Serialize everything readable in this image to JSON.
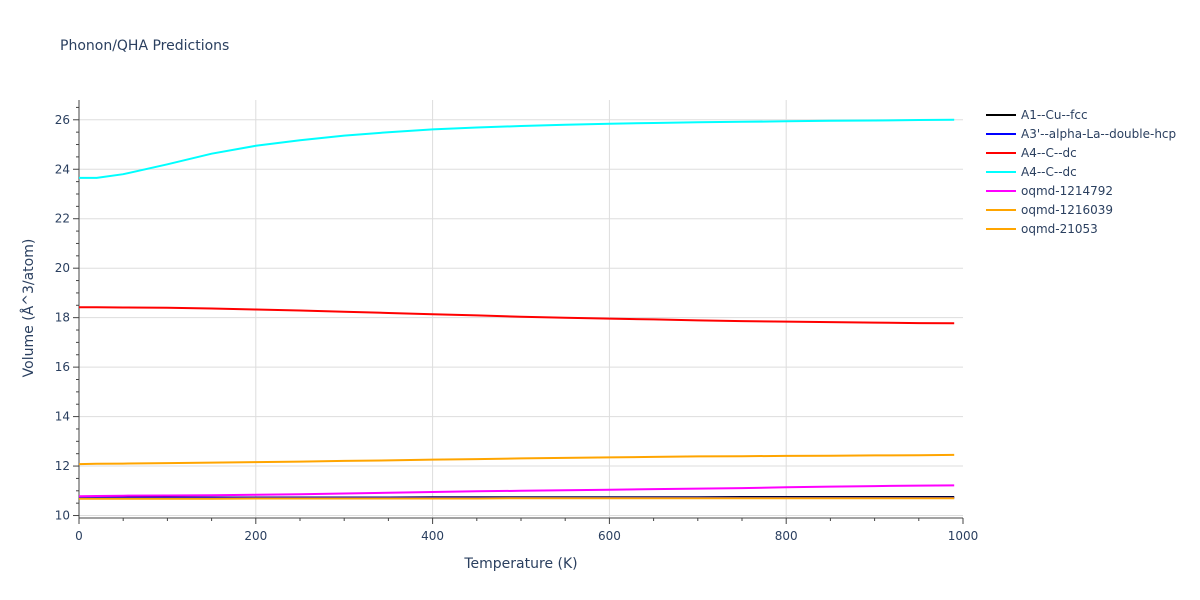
{
  "chart_data": {
    "type": "line",
    "title": "Phonon/QHA Predictions",
    "xlabel": "Temperature (K)",
    "ylabel": "Volume (Å^3/atom)",
    "xlim": [
      0,
      1000
    ],
    "ylim": [
      9.9,
      26.8
    ],
    "x_ticks": [
      0,
      200,
      400,
      600,
      800,
      1000
    ],
    "y_ticks": [
      10,
      12,
      14,
      16,
      18,
      20,
      22,
      24,
      26
    ],
    "grid": true,
    "legend_position": "top-right",
    "x": [
      0,
      20,
      50,
      100,
      150,
      200,
      250,
      300,
      350,
      400,
      450,
      500,
      550,
      600,
      650,
      700,
      750,
      800,
      850,
      900,
      950,
      990
    ],
    "series": [
      {
        "name": "A1--Cu--fcc",
        "color": "#000000",
        "values": [
          10.73,
          10.73,
          10.73,
          10.73,
          10.73,
          10.73,
          10.73,
          10.73,
          10.73,
          10.74,
          10.74,
          10.74,
          10.74,
          10.74,
          10.74,
          10.74,
          10.75,
          10.75,
          10.75,
          10.75,
          10.75,
          10.75
        ]
      },
      {
        "name": "A3'--alpha-La--double-hcp",
        "color": "#0000ff",
        "values": [
          10.72,
          10.72,
          10.72,
          10.72,
          10.72,
          10.72,
          10.72,
          10.72,
          10.72,
          10.72,
          10.72,
          10.72,
          10.72,
          10.72,
          10.72,
          10.72,
          10.72,
          10.72,
          10.72,
          10.72,
          10.72,
          10.72
        ]
      },
      {
        "name": "A4--C--dc",
        "color": "#ff0000",
        "values": [
          18.42,
          18.42,
          18.41,
          18.4,
          18.37,
          18.33,
          18.29,
          18.24,
          18.19,
          18.14,
          18.09,
          18.04,
          18.0,
          17.96,
          17.93,
          17.89,
          17.86,
          17.84,
          17.82,
          17.8,
          17.78,
          17.77
        ]
      },
      {
        "name": "A4--C--dc",
        "color": "#00ffff",
        "values": [
          23.65,
          23.65,
          23.8,
          24.2,
          24.63,
          24.95,
          25.17,
          25.36,
          25.5,
          25.61,
          25.69,
          25.75,
          25.8,
          25.84,
          25.87,
          25.9,
          25.92,
          25.94,
          25.96,
          25.97,
          25.99,
          26.0
        ]
      },
      {
        "name": "oqmd-1214792",
        "color": "#ff00ff",
        "values": [
          10.78,
          10.79,
          10.8,
          10.81,
          10.82,
          10.84,
          10.86,
          10.89,
          10.92,
          10.95,
          10.98,
          11.0,
          11.02,
          11.04,
          11.07,
          11.09,
          11.11,
          11.14,
          11.17,
          11.19,
          11.21,
          11.22
        ]
      },
      {
        "name": "oqmd-1216039",
        "color": "#ffa500",
        "values": [
          12.08,
          12.09,
          12.1,
          12.12,
          12.14,
          12.16,
          12.18,
          12.21,
          12.23,
          12.26,
          12.28,
          12.31,
          12.33,
          12.35,
          12.37,
          12.39,
          12.4,
          12.41,
          12.42,
          12.43,
          12.44,
          12.45
        ]
      },
      {
        "name": "oqmd-21053",
        "color": "#ffa500",
        "values": [
          10.68,
          10.68,
          10.68,
          10.68,
          10.68,
          10.69,
          10.69,
          10.69,
          10.69,
          10.69,
          10.69,
          10.7,
          10.7,
          10.7,
          10.7,
          10.7,
          10.7,
          10.7,
          10.7,
          10.7,
          10.7,
          10.7
        ]
      }
    ]
  }
}
